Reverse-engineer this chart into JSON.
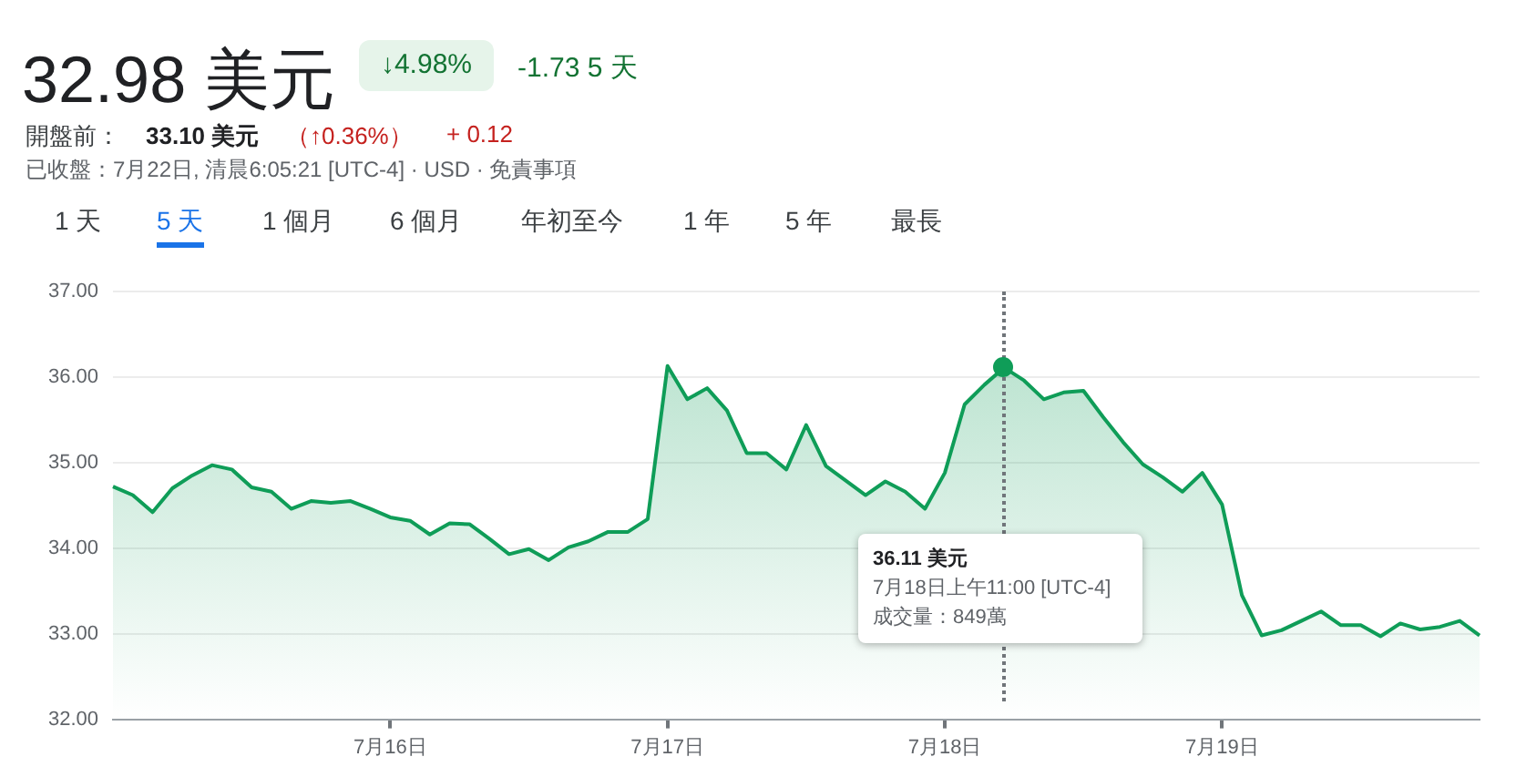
{
  "chart_data": {
    "type": "area",
    "title": "32.98 美元",
    "annotations": [
      "↓4.98%",
      "-1.73 5 天",
      "開盤前：",
      "33.10 美元",
      "（↑0.36%）",
      "+ 0.12",
      "已收盤：7月22日, 清晨6:05:21 [UTC-4] · USD · 免責事項",
      "1 天",
      "5 天",
      "1 個月",
      "6 個月",
      "年初至今",
      "1 年",
      "5 年",
      "最長",
      "36.11 美元\n7月18日上午11:00 [UTC-4]\n成交量：849萬"
    ],
    "categories": [
      null,
      null,
      null,
      null,
      null,
      null,
      null,
      null,
      null,
      null,
      null,
      null,
      null,
      null,
      "7月16日",
      null,
      null,
      null,
      null,
      null,
      null,
      null,
      null,
      null,
      null,
      null,
      null,
      null,
      "7月17日",
      null,
      null,
      null,
      null,
      null,
      null,
      null,
      null,
      null,
      null,
      null,
      null,
      null,
      "7月18日",
      null,
      null,
      null,
      null,
      null,
      null,
      null,
      null,
      null,
      null,
      null,
      null,
      null,
      "7月19日",
      null,
      null,
      null,
      null,
      null,
      null,
      null,
      null,
      null,
      null,
      null,
      null,
      null
    ],
    "series": [
      {
        "color": "#0f9d58",
        "values": [
          34.72,
          34.62,
          34.42,
          34.7,
          34.85,
          34.97,
          34.92,
          34.71,
          34.66,
          34.46,
          34.55,
          34.53,
          34.55,
          34.46,
          34.36,
          34.32,
          34.16,
          34.29,
          34.28,
          34.11,
          33.93,
          33.99,
          33.86,
          34.01,
          34.08,
          34.19,
          34.19,
          34.34,
          36.13,
          35.74,
          35.87,
          35.61,
          35.11,
          35.11,
          34.92,
          35.44,
          34.96,
          34.79,
          34.62,
          34.78,
          34.66,
          34.46,
          34.88,
          35.68,
          35.91,
          36.11,
          35.96,
          35.74,
          35.82,
          35.84,
          35.53,
          35.24,
          34.98,
          34.83,
          34.66,
          34.88,
          34.51,
          33.45,
          32.98,
          33.04,
          33.15,
          33.26,
          33.1,
          33.1,
          32.97,
          33.12,
          33.05,
          33.08,
          33.15,
          32.98
        ]
      }
    ],
    "ylim": [
      32,
      37
    ],
    "yticks": [
      {
        "value": 32,
        "label": "32.00"
      },
      {
        "value": 33,
        "label": "33.00"
      },
      {
        "value": 34,
        "label": "34.00"
      },
      {
        "value": 35,
        "label": "35.00"
      },
      {
        "value": 36,
        "label": "36.00"
      },
      {
        "value": 37,
        "label": "37.00"
      }
    ],
    "grid": "y",
    "legend": false,
    "marker": "none",
    "line_style": "solid"
  }
}
